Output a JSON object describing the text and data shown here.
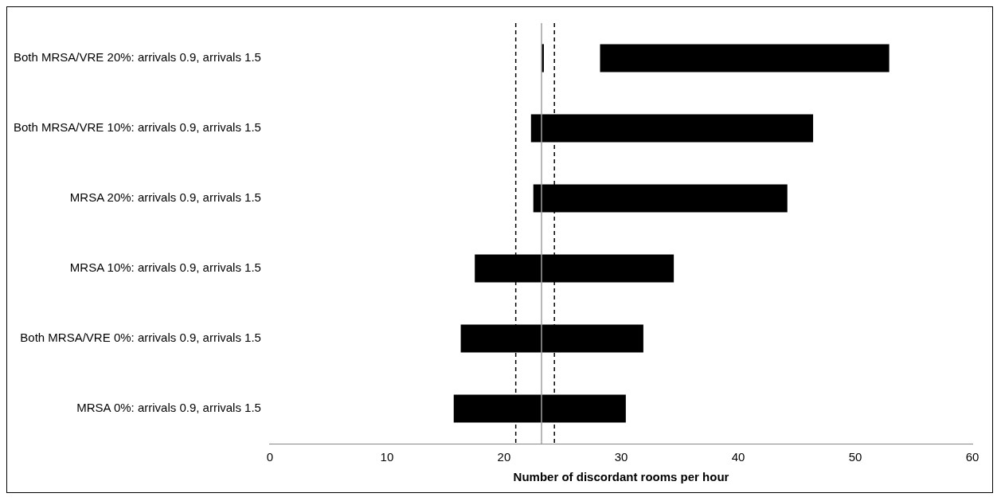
{
  "chart_data": {
    "type": "bar",
    "orientation": "horizontal",
    "xlabel": "Number of discordant rooms per hour",
    "categories": [
      "Both MRSA/VRE 20%: arrivals 0.9, arrivals 1.5",
      "Both MRSA/VRE 10%: arrivals 0.9, arrivals 1.5",
      "MRSA 20%: arrivals 0.9, arrivals 1.5",
      "MRSA 10%: arrivals 0.9, arrivals 1.5",
      "Both MRSA/VRE 0%: arrivals 0.9, arrivals 1.5",
      "MRSA 0%: arrivals 0.9, arrivals 1.5"
    ],
    "series": [
      {
        "color": "#000000",
        "base": [
          28.2,
          22.3,
          22.5,
          17.5,
          16.3,
          15.7
        ],
        "values": [
          24.7,
          24.1,
          21.7,
          17.0,
          15.6,
          14.7
        ]
      },
      {
        "color": "#000000",
        "base": [
          23.2,
          null,
          null,
          null,
          null,
          null
        ],
        "values": [
          0.2,
          null,
          null,
          null,
          null,
          null
        ]
      }
    ],
    "xlim": [
      0,
      60
    ],
    "xticks": [
      0,
      10,
      20,
      30,
      40,
      50,
      60
    ],
    "grid": false,
    "legend": false,
    "ref_lines": [
      {
        "axis": "x",
        "value": 21.0,
        "color": "#000000",
        "line_style": "dashed"
      },
      {
        "axis": "x",
        "value": 23.2,
        "color": "#a0a0a0",
        "line_style": "solid"
      },
      {
        "axis": "x",
        "value": 24.3,
        "color": "#000000",
        "line_style": "dashed"
      }
    ]
  }
}
